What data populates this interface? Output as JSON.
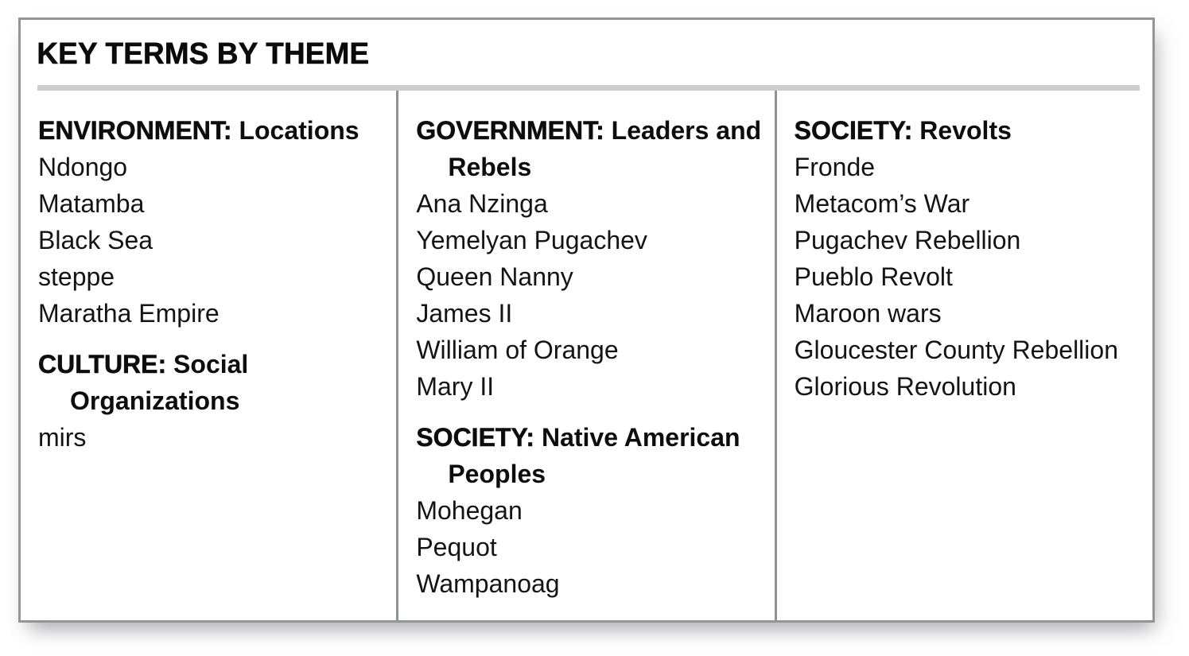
{
  "title": "KEY TERMS BY THEME",
  "colors": {
    "border": "#939598",
    "rule": "#cbcccd",
    "text": "#111111"
  },
  "columns": [
    {
      "sections": [
        {
          "category": "ENVIRONMENT:",
          "topic": "Locations",
          "terms": [
            "Ndongo",
            "Matamba",
            "Black Sea",
            "steppe",
            "Maratha Empire"
          ]
        },
        {
          "category": "CULTURE:",
          "topic": "Social Organizations",
          "terms": [
            "mirs"
          ]
        }
      ]
    },
    {
      "sections": [
        {
          "category": "GOVERNMENT:",
          "topic": "Leaders and Rebels",
          "terms": [
            "Ana Nzinga",
            "Yemelyan Pugachev",
            "Queen Nanny",
            "James II",
            "William of Orange",
            "Mary II"
          ]
        },
        {
          "category": "SOCIETY:",
          "topic": "Native American Peoples",
          "terms": [
            "Mohegan",
            "Pequot",
            "Wampanoag"
          ]
        }
      ]
    },
    {
      "sections": [
        {
          "category": "SOCIETY:",
          "topic": "Revolts",
          "terms": [
            "Fronde",
            "Metacom’s War",
            "Pugachev Rebellion",
            "Pueblo Revolt",
            "Maroon wars",
            "Gloucester County Rebellion",
            "Glorious Revolution"
          ]
        }
      ]
    }
  ]
}
